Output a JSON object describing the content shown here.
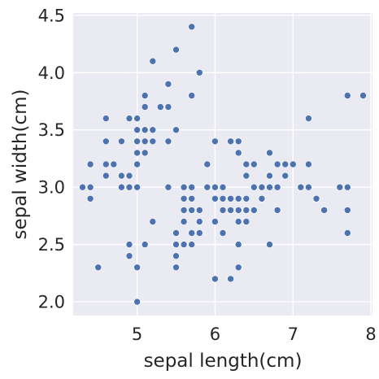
{
  "chart_data": {
    "type": "scatter",
    "title": "",
    "xlabel": "sepal length(cm)",
    "ylabel": "sepal width(cm)",
    "xlim": [
      4.18,
      8.02
    ],
    "ylim": [
      1.88,
      4.52
    ],
    "xticks": [
      5,
      6,
      7,
      8
    ],
    "yticks": [
      2.0,
      2.5,
      3.0,
      3.5,
      4.0,
      4.5
    ],
    "xtick_labels": [
      "5",
      "6",
      "7",
      "8"
    ],
    "ytick_labels": [
      "2.0",
      "2.5",
      "3.0",
      "3.5",
      "4.0",
      "4.5"
    ],
    "grid": true,
    "colors": {
      "background": "#eaeaf2",
      "grid": "#ffffff",
      "marker": "#4c72b0",
      "text": "#262626"
    },
    "points": [
      [
        5.1,
        3.5
      ],
      [
        4.9,
        3.0
      ],
      [
        4.7,
        3.2
      ],
      [
        4.6,
        3.1
      ],
      [
        5.0,
        3.6
      ],
      [
        5.4,
        3.9
      ],
      [
        4.6,
        3.4
      ],
      [
        5.0,
        3.4
      ],
      [
        4.4,
        2.9
      ],
      [
        4.9,
        3.1
      ],
      [
        5.4,
        3.7
      ],
      [
        4.8,
        3.4
      ],
      [
        4.8,
        3.0
      ],
      [
        4.3,
        3.0
      ],
      [
        5.8,
        4.0
      ],
      [
        5.7,
        4.4
      ],
      [
        5.4,
        3.9
      ],
      [
        5.1,
        3.5
      ],
      [
        5.7,
        3.8
      ],
      [
        5.1,
        3.8
      ],
      [
        5.4,
        3.4
      ],
      [
        5.1,
        3.7
      ],
      [
        4.6,
        3.6
      ],
      [
        5.1,
        3.3
      ],
      [
        4.8,
        3.4
      ],
      [
        5.0,
        3.0
      ],
      [
        5.0,
        3.4
      ],
      [
        5.2,
        3.5
      ],
      [
        5.2,
        3.4
      ],
      [
        4.7,
        3.2
      ],
      [
        4.8,
        3.1
      ],
      [
        5.4,
        3.4
      ],
      [
        5.2,
        4.1
      ],
      [
        5.5,
        4.2
      ],
      [
        4.9,
        3.1
      ],
      [
        5.0,
        3.2
      ],
      [
        5.5,
        3.5
      ],
      [
        4.9,
        3.6
      ],
      [
        4.4,
        3.0
      ],
      [
        5.1,
        3.4
      ],
      [
        5.0,
        3.5
      ],
      [
        4.5,
        2.3
      ],
      [
        4.4,
        3.2
      ],
      [
        5.0,
        3.5
      ],
      [
        5.1,
        3.8
      ],
      [
        4.8,
        3.0
      ],
      [
        5.1,
        3.8
      ],
      [
        4.6,
        3.2
      ],
      [
        5.3,
        3.7
      ],
      [
        5.0,
        3.3
      ],
      [
        7.0,
        3.2
      ],
      [
        6.4,
        3.2
      ],
      [
        6.9,
        3.1
      ],
      [
        5.5,
        2.3
      ],
      [
        6.5,
        2.8
      ],
      [
        5.7,
        2.8
      ],
      [
        6.3,
        3.3
      ],
      [
        4.9,
        2.4
      ],
      [
        6.6,
        2.9
      ],
      [
        5.2,
        2.7
      ],
      [
        5.0,
        2.0
      ],
      [
        5.9,
        3.0
      ],
      [
        6.0,
        2.2
      ],
      [
        6.1,
        2.9
      ],
      [
        5.6,
        2.9
      ],
      [
        6.7,
        3.1
      ],
      [
        5.6,
        3.0
      ],
      [
        5.8,
        2.7
      ],
      [
        6.2,
        2.2
      ],
      [
        5.6,
        2.5
      ],
      [
        5.9,
        3.2
      ],
      [
        6.1,
        2.8
      ],
      [
        6.3,
        2.5
      ],
      [
        6.1,
        2.8
      ],
      [
        6.4,
        2.9
      ],
      [
        6.6,
        3.0
      ],
      [
        6.8,
        2.8
      ],
      [
        6.7,
        3.0
      ],
      [
        6.0,
        2.9
      ],
      [
        5.7,
        2.6
      ],
      [
        5.5,
        2.4
      ],
      [
        5.5,
        2.4
      ],
      [
        5.8,
        2.7
      ],
      [
        6.0,
        2.7
      ],
      [
        5.4,
        3.0
      ],
      [
        6.0,
        3.4
      ],
      [
        6.7,
        3.1
      ],
      [
        6.3,
        2.3
      ],
      [
        5.6,
        3.0
      ],
      [
        5.5,
        2.5
      ],
      [
        5.5,
        2.6
      ],
      [
        6.1,
        3.0
      ],
      [
        5.8,
        2.6
      ],
      [
        5.0,
        2.3
      ],
      [
        5.6,
        2.7
      ],
      [
        5.7,
        3.0
      ],
      [
        5.7,
        2.9
      ],
      [
        6.2,
        2.9
      ],
      [
        5.1,
        2.5
      ],
      [
        5.7,
        2.8
      ],
      [
        6.3,
        3.3
      ],
      [
        5.8,
        2.7
      ],
      [
        7.1,
        3.0
      ],
      [
        6.3,
        2.9
      ],
      [
        6.5,
        3.0
      ],
      [
        7.6,
        3.0
      ],
      [
        4.9,
        2.5
      ],
      [
        7.3,
        2.9
      ],
      [
        6.7,
        2.5
      ],
      [
        7.2,
        3.6
      ],
      [
        6.5,
        3.2
      ],
      [
        6.4,
        2.7
      ],
      [
        6.8,
        3.0
      ],
      [
        5.7,
        2.5
      ],
      [
        5.8,
        2.8
      ],
      [
        6.4,
        3.2
      ],
      [
        6.5,
        3.0
      ],
      [
        7.7,
        3.8
      ],
      [
        7.7,
        2.6
      ],
      [
        6.0,
        2.2
      ],
      [
        6.9,
        3.2
      ],
      [
        5.6,
        2.8
      ],
      [
        7.7,
        2.8
      ],
      [
        6.3,
        2.7
      ],
      [
        6.7,
        3.3
      ],
      [
        7.2,
        3.2
      ],
      [
        6.2,
        2.8
      ],
      [
        6.1,
        3.0
      ],
      [
        6.4,
        2.8
      ],
      [
        7.2,
        3.0
      ],
      [
        7.4,
        2.8
      ],
      [
        7.9,
        3.8
      ],
      [
        6.4,
        2.8
      ],
      [
        6.3,
        2.8
      ],
      [
        6.1,
        2.6
      ],
      [
        7.7,
        3.0
      ],
      [
        6.3,
        3.4
      ],
      [
        6.4,
        3.1
      ],
      [
        6.0,
        3.0
      ],
      [
        6.9,
        3.1
      ],
      [
        6.7,
        3.1
      ],
      [
        6.9,
        3.1
      ],
      [
        5.8,
        2.7
      ],
      [
        6.8,
        3.2
      ],
      [
        6.7,
        3.3
      ],
      [
        6.7,
        3.0
      ],
      [
        6.3,
        2.5
      ],
      [
        6.5,
        3.0
      ],
      [
        6.2,
        3.4
      ],
      [
        5.9,
        3.0
      ]
    ]
  }
}
